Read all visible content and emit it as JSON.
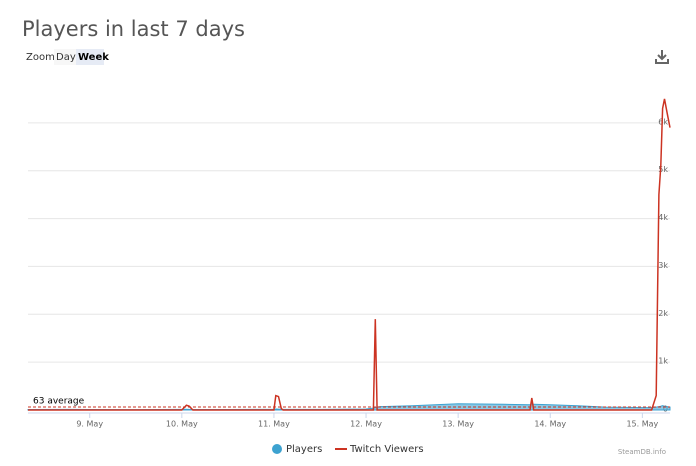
{
  "chart_data": {
    "type": "area-line",
    "title": "Players in last 7 days",
    "zoom_label": "Zoom",
    "zoom_options": [
      "Day",
      "Week"
    ],
    "credit": "SteamDB.info",
    "x": [
      8.33,
      8.8,
      9.0,
      9.5,
      10.0,
      10.05,
      10.08,
      10.12,
      10.5,
      11.0,
      11.02,
      11.05,
      11.08,
      11.1,
      11.5,
      12.0,
      12.08,
      12.1,
      12.12,
      12.15,
      12.5,
      13.0,
      13.5,
      13.78,
      13.8,
      13.82,
      14.0,
      14.3,
      14.6,
      15.0,
      15.1,
      15.15,
      15.18,
      15.2,
      15.22,
      15.24,
      15.27,
      15.3
    ],
    "series": [
      {
        "name": "Players",
        "color": "#3da2d0",
        "values": [
          10,
          12,
          10,
          8,
          12,
          14,
          12,
          10,
          10,
          14,
          20,
          18,
          16,
          14,
          12,
          20,
          40,
          50,
          60,
          70,
          90,
          130,
          120,
          110,
          130,
          120,
          110,
          90,
          60,
          50,
          50,
          60,
          70,
          80,
          90,
          80,
          70,
          60
        ]
      },
      {
        "name": "Twitch Viewers",
        "color": "#cc3322",
        "values": [
          0,
          0,
          0,
          0,
          0,
          100,
          80,
          0,
          0,
          0,
          300,
          280,
          30,
          0,
          0,
          0,
          0,
          1900,
          0,
          0,
          0,
          0,
          0,
          0,
          250,
          0,
          0,
          0,
          0,
          0,
          0,
          300,
          4500,
          5100,
          6300,
          6500,
          6200,
          5900
        ]
      }
    ],
    "average": {
      "value": 63,
      "label": "63 average"
    },
    "xlim": [
      8.33,
      15.3
    ],
    "xticks": [
      {
        "value": 9,
        "label": "9. May"
      },
      {
        "value": 10,
        "label": "10. May"
      },
      {
        "value": 11,
        "label": "11. May"
      },
      {
        "value": 12,
        "label": "12. May"
      },
      {
        "value": 13,
        "label": "13. May"
      },
      {
        "value": 14,
        "label": "14. May"
      },
      {
        "value": 15,
        "label": "15. May"
      }
    ],
    "ylim": [
      0,
      7000
    ],
    "yticks": [
      0,
      {
        "value": 1000,
        "label": "1k"
      },
      {
        "value": 2000,
        "label": "2k"
      },
      {
        "value": 3000,
        "label": "3k"
      },
      {
        "value": 4000,
        "label": "4k"
      },
      {
        "value": 5000,
        "label": "5k"
      },
      {
        "value": 6000,
        "label": "6k"
      }
    ],
    "grid": true
  }
}
